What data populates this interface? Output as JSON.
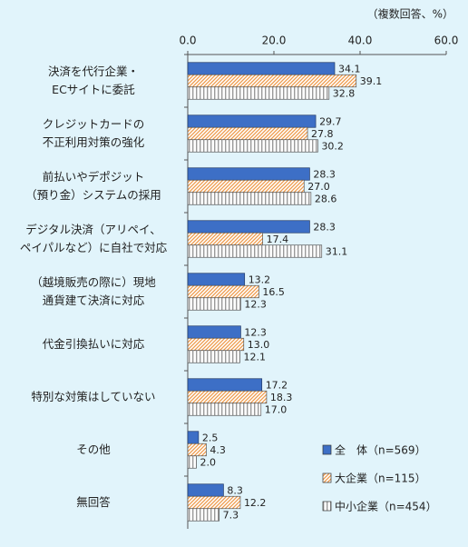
{
  "chart_data": {
    "type": "hbar",
    "subtitle": "（複数回答、%）",
    "categories": [
      "決済を代行企業・\nECサイトに委託",
      "クレジットカードの\n不正利用対策の強化",
      "前払いやデポジット\n（預り金）システムの採用",
      "デジタル決済（アリペイ、\nペイパルなど）に自社で対応",
      "（越境販売の際に）現地\n通貨建て決済に対応",
      "代金引換払いに対応",
      "特別な対策はしていない",
      "その他",
      "無回答"
    ],
    "series": [
      {
        "name": "全　体（n=569）",
        "color": "#3d6fc6",
        "hatch": "none",
        "values": [
          34.1,
          29.7,
          28.3,
          28.3,
          13.2,
          12.3,
          17.2,
          2.5,
          8.3
        ],
        "value_labels": [
          "34.1",
          "29.7",
          "28.3",
          "28.3",
          "13.2",
          "12.3",
          "17.2",
          "2.5",
          "8.3"
        ]
      },
      {
        "name": "大企業（n=115）",
        "color": "#ee9a4a",
        "hatch": "diagonal",
        "values": [
          39.1,
          27.8,
          27.0,
          17.4,
          16.5,
          13.0,
          18.3,
          4.3,
          12.2
        ],
        "value_labels": [
          "39.1",
          "27.8",
          "27.0",
          "17.4",
          "16.5",
          "13.0",
          "18.3",
          "4.3",
          "12.2"
        ]
      },
      {
        "name": "中小企業（n=454）",
        "color": "#9a9a9a",
        "hatch": "vertical",
        "values": [
          32.8,
          30.2,
          28.6,
          31.1,
          12.3,
          12.1,
          17.0,
          2.0,
          7.3
        ],
        "value_labels": [
          "32.8",
          "30.2",
          "28.6",
          "31.1",
          "12.3",
          "12.1",
          "17.0",
          "2.0",
          "7.3"
        ]
      }
    ],
    "xlim": [
      0,
      60
    ],
    "xticks": [
      {
        "value": 0,
        "label": "0.0"
      },
      {
        "value": 20,
        "label": "20.0"
      },
      {
        "value": 40,
        "label": "40.0"
      },
      {
        "value": 60,
        "label": "60.0"
      }
    ],
    "legend": "lower-right"
  }
}
